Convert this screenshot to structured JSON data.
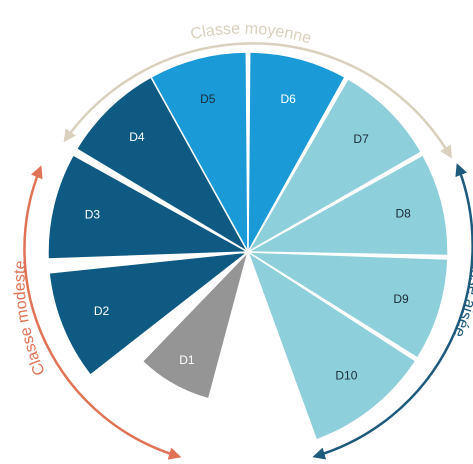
{
  "deciles": [
    {
      "label": "D1",
      "color": "#959595",
      "text_color": "#ffffff"
    },
    {
      "label": "D2",
      "color": "#0e5a83",
      "text_color": "#ffffff"
    },
    {
      "label": "D3",
      "color": "#0e5a83",
      "text_color": "#ffffff"
    },
    {
      "label": "D4",
      "color": "#0e5a83",
      "text_color": "#ffffff"
    },
    {
      "label": "D5",
      "color": "#1a9ad6",
      "text_color": "#1b2b38"
    },
    {
      "label": "D6",
      "color": "#1a9ad6",
      "text_color": "#ffffff"
    },
    {
      "label": "D7",
      "color": "#8dcfdb",
      "text_color": "#1b2b38"
    },
    {
      "label": "D8",
      "color": "#8dcfdb",
      "text_color": "#1b2b38"
    },
    {
      "label": "D9",
      "color": "#8dcfdb",
      "text_color": "#1b2b38"
    },
    {
      "label": "D10",
      "color": "#8dcfdb",
      "text_color": "#1b2b38"
    }
  ],
  "arcs": {
    "modeste": {
      "label": "Classe modeste",
      "color": "#e07355"
    },
    "moyenne": {
      "label": "Classe moyenne",
      "color": "#d9d0bd"
    },
    "aisee": {
      "label": "Classe aisée",
      "color": "#1e5a7c"
    }
  }
}
